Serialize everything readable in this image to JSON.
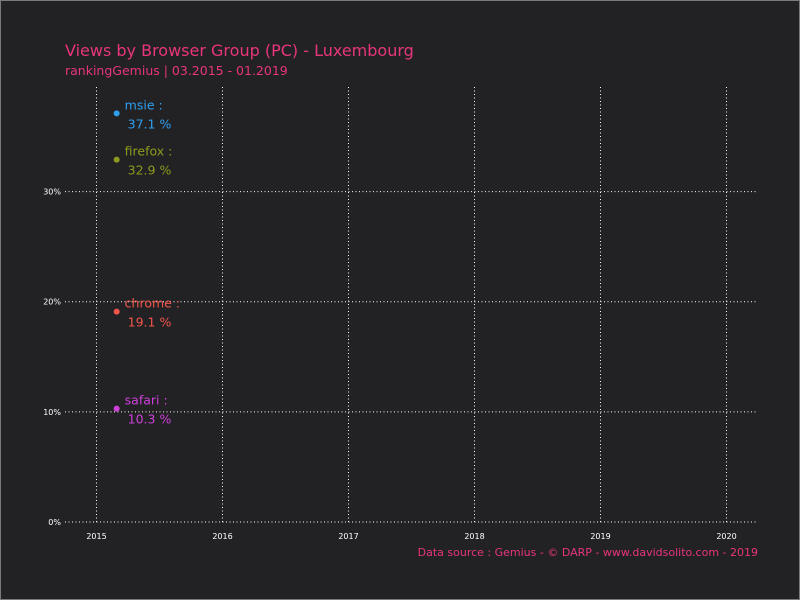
{
  "colors": {
    "background": "#222225",
    "grid": "#ffffff",
    "title": "#e8357b",
    "caption": "#e8357b",
    "tick_text": "#ffffff"
  },
  "chart_data": {
    "type": "scatter",
    "title": "Views by Browser Group (PC) - Luxembourg",
    "subtitle": "rankingGemius | 03.2015 - 01.2019",
    "caption": "Data source : Gemius - © DARP - www.davidsolito.com - 2019",
    "xlabel": "",
    "ylabel": "",
    "x_ticks": [
      "2015",
      "2016",
      "2017",
      "2018",
      "2019",
      "2020"
    ],
    "x_tick_values": [
      2015,
      2016,
      2017,
      2018,
      2019,
      2020
    ],
    "xlim": [
      2014.75,
      2020.25
    ],
    "y_ticks": [
      "0%",
      "10%",
      "20%",
      "30%"
    ],
    "y_tick_values": [
      0,
      10,
      20,
      30
    ],
    "ylim": [
      0,
      39.5
    ],
    "grid": true,
    "legend": "none",
    "series": [
      {
        "name": "msie",
        "x": 2015.16,
        "value": 37.1,
        "label_name": "msie :",
        "label_value": "37.1 %",
        "color": "#2f9ff0"
      },
      {
        "name": "firefox",
        "x": 2015.16,
        "value": 32.9,
        "label_name": "firefox :",
        "label_value": "32.9 %",
        "color": "#8e9a1c"
      },
      {
        "name": "chrome",
        "x": 2015.16,
        "value": 19.1,
        "label_name": "chrome :",
        "label_value": "19.1 %",
        "color": "#f2564a"
      },
      {
        "name": "safari",
        "x": 2015.16,
        "value": 10.3,
        "label_name": "safari :",
        "label_value": "10.3 %",
        "color": "#cf3fdb"
      }
    ]
  }
}
